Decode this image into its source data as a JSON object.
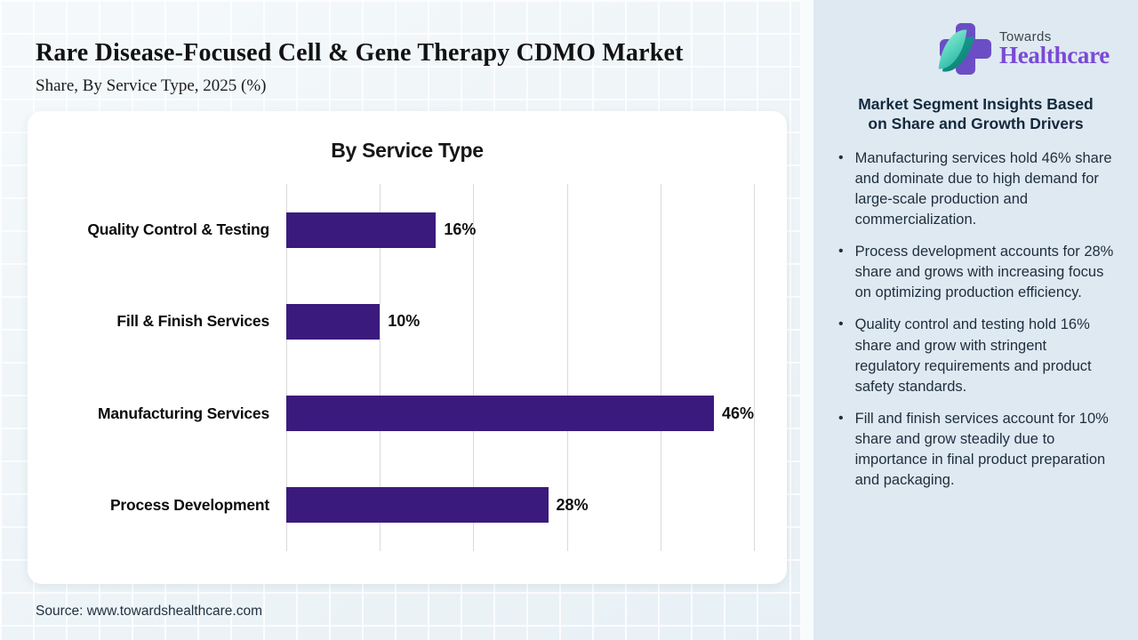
{
  "header": {
    "title": "Rare Disease-Focused Cell & Gene Therapy CDMO Market",
    "subtitle": "Share, By Service Type, 2025 (%)"
  },
  "footer": {
    "source": "Source: www.towardshealthcare.com"
  },
  "logo": {
    "name_top": "Towards",
    "name_bottom": "Healthcare"
  },
  "sidebar": {
    "heading_line1": "Market Segment Insights Based",
    "heading_line2": "on Share and Growth Drivers",
    "bullets": [
      "Manufacturing services hold 46% share and dominate due to high demand for large-scale production and commercialization.",
      "Process development accounts for 28% share and grows with increasing focus on optimizing production efficiency.",
      "Quality control and testing hold 16% share and grow with stringent regulatory requirements and product safety standards.",
      "Fill and finish services account for 10% share and grow steadily due to importance in final product preparation and packaging."
    ]
  },
  "chart_data": {
    "type": "bar",
    "orientation": "horizontal",
    "title": "By Service Type",
    "categories": [
      "Quality Control & Testing",
      "Fill & Finish Services",
      "Manufacturing Services",
      "Process Development"
    ],
    "values": [
      16,
      10,
      46,
      28
    ],
    "value_labels": [
      "16%",
      "10%",
      "46%",
      "28%"
    ],
    "xlim": [
      0,
      50
    ],
    "gridline_step": 10,
    "grid": true,
    "legend": false,
    "bar_color": "#3b1a7d"
  },
  "colors": {
    "bar": "#3b1a7d",
    "page_bg": "#e9f1f5",
    "sidebar_bg": "#dfe9f2",
    "logo_cross": "#6b4ec5",
    "logo_leaf": "#2fc4ad",
    "brand_text": "#7a4ad6",
    "sidebar_heading_text": "#13293d",
    "sidebar_body_text": "#1e2e3d"
  }
}
